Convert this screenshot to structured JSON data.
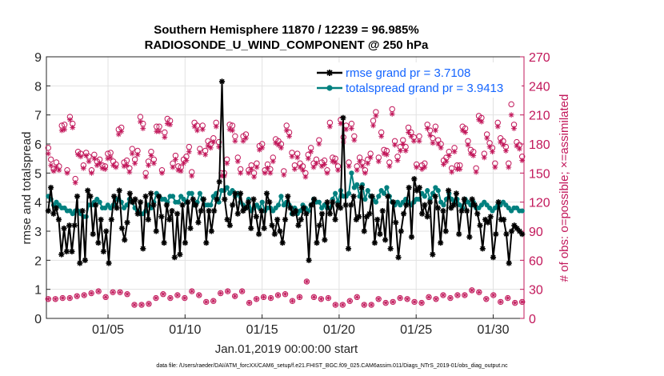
{
  "chart_data": {
    "type": "line",
    "title_line1": "Southern Hemisphere 11870 / 12239 = 96.985%",
    "title_line2": "RADIOSONDE_U_WIND_COMPONENT @ 250 hPa",
    "xlabel": "Jan.01,2019 00:00:00 start",
    "ylabel": "rmse and totalspread",
    "y2label": "# of obs: o=possible; ×=assimilated",
    "footer": "data file: /Users/raeder/DAI/ATM_forcXX/CAM6_setup/f.e21.FHIST_BGC.f09_025.CAM6assim.011/Diags_NTrS_2019-01/obs_diag_output.nc",
    "xlim": [
      1,
      32
    ],
    "ylim": [
      0,
      9
    ],
    "y2lim": [
      0,
      270
    ],
    "x_ticks": [
      5,
      10,
      15,
      20,
      25,
      30
    ],
    "x_tick_labels": [
      "01/05",
      "01/10",
      "01/15",
      "01/20",
      "01/25",
      "01/30"
    ],
    "y_ticks": [
      0,
      1,
      2,
      3,
      4,
      5,
      6,
      7,
      8,
      9
    ],
    "y_tick_labels": [
      "0",
      "1",
      "2",
      "3",
      "4",
      "5",
      "6",
      "7",
      "8",
      "9"
    ],
    "y2_ticks": [
      0,
      30,
      60,
      90,
      120,
      150,
      180,
      210,
      240,
      270
    ],
    "y2_tick_labels": [
      "0",
      "30",
      "60",
      "90",
      "120",
      "150",
      "180",
      "210",
      "240",
      "270"
    ],
    "grid": true,
    "legend_location": "top-right",
    "colors": {
      "rmse": "#000000",
      "spread": "#00807f",
      "obs": "#c2185b",
      "legend_text": "#1565ff"
    },
    "series": [
      {
        "name": "rmse grand pr = 3.7108",
        "marker": "asterisk",
        "values": [
          3.7,
          4.5,
          3.6,
          3.8,
          3.4,
          2.2,
          3.1,
          2.3,
          3.2,
          2.3,
          3.2,
          4.2,
          1.9,
          3.7,
          2.0,
          4.4,
          4.2,
          2.9,
          3.9,
          2.6,
          3.4,
          2.3,
          3.0,
          1.9,
          3.4,
          4.2,
          3.8,
          4.4,
          3.1,
          2.7,
          3.3,
          4.3,
          4.0,
          4.1,
          3.6,
          4.0,
          2.4,
          4.2,
          3.4,
          4.3,
          3.9,
          3.0,
          4.2,
          3.5,
          2.6,
          3.9,
          3.4,
          3.7,
          2.1,
          3.6,
          2.2,
          3.9,
          2.6,
          4.0,
          3.1,
          4.1,
          3.9,
          3.3,
          3.7,
          4.1,
          2.6,
          3.7,
          3.0,
          3.7,
          4.1,
          4.7,
          8.15,
          4.1,
          3.4,
          3.2,
          3.9,
          4.3,
          3.6,
          4.3,
          3.7,
          3.8,
          4.0,
          3.1,
          4.1,
          3.5,
          2.9,
          3.7,
          3.1,
          4.3,
          4.0,
          3.2,
          2.9,
          3.4,
          3.0,
          2.6,
          3.4,
          4.2,
          3.8,
          3.6,
          3.7,
          3.2,
          3.4,
          3.8,
          3.6,
          2.0,
          3.9,
          4.1,
          2.6,
          3.2,
          3.6,
          2.7,
          4.0,
          3.6,
          4.0,
          3.4,
          3.9,
          3.8,
          6.9,
          3.9,
          2.4,
          3.9,
          4.2,
          3.4,
          3.5,
          4.5,
          3.0,
          3.5,
          3.6,
          4.2,
          2.6,
          3.4,
          2.9,
          3.7,
          2.7,
          4.2,
          2.4,
          4.0,
          3.3,
          2.1,
          3.0,
          3.6,
          3.9,
          4.5,
          2.8,
          4.8,
          4.4,
          4.5,
          3.6,
          3.9,
          3.5,
          4.0,
          2.2,
          4.2,
          3.8,
          2.6,
          3.7,
          3.0,
          4.4,
          3.8,
          3.9,
          4.3,
          2.9,
          3.7,
          4.1,
          3.7,
          2.8,
          4.1,
          3.9,
          3.6,
          3.2,
          2.4,
          3.4,
          3.3,
          3.5,
          2.1,
          2.9,
          4.0,
          3.4,
          3.4,
          2.9,
          1.9,
          3.0,
          3.2,
          3.1,
          3.0,
          2.9
        ]
      },
      {
        "name": "totalspread grand pr = 3.9413",
        "marker": "dot",
        "values": [
          4.2,
          4.1,
          3.9,
          4.0,
          3.9,
          3.8,
          3.8,
          3.7,
          3.7,
          3.6,
          3.7,
          3.7,
          3.6,
          3.5,
          3.5,
          3.9,
          3.9,
          4.0,
          4.1,
          4.0,
          3.8,
          3.8,
          3.9,
          3.8,
          3.9,
          4.1,
          4.1,
          4.0,
          3.8,
          3.9,
          4.1,
          4.0,
          3.8,
          3.7,
          3.6,
          3.6,
          3.7,
          3.9,
          3.8,
          4.0,
          4.3,
          4.2,
          4.1,
          4.1,
          4.0,
          4.2,
          4.2,
          4.0,
          4.0,
          4.2,
          4.1,
          4.0,
          4.3,
          4.3,
          3.9,
          4.0,
          4.3,
          4.1,
          3.9,
          3.9,
          3.9,
          4.2,
          4.3,
          4.0,
          4.4,
          4.4,
          4.5,
          4.3,
          4.4,
          4.2,
          4.3,
          4.0,
          3.9,
          3.8,
          4.1,
          3.7,
          3.8,
          3.9,
          3.8,
          4.0,
          3.7,
          3.8,
          3.8,
          3.7,
          3.8,
          3.9,
          4.2,
          3.9,
          4.0,
          3.9,
          3.6,
          3.8,
          3.6,
          3.7,
          3.9,
          3.8,
          3.7,
          3.9,
          4.1,
          4.0,
          4.0,
          3.8,
          3.9,
          3.8,
          3.8,
          4.1,
          4.3,
          4.0,
          4.4,
          4.2,
          4.2,
          4.3,
          5.0,
          4.5,
          4.6,
          4.2,
          4.6,
          4.1,
          4.4,
          4.2,
          4.1,
          4.0,
          4.2,
          4.4,
          4.3,
          4.5,
          4.2,
          4.0,
          3.9,
          4.0,
          3.9,
          4.0,
          4.1,
          4.0,
          3.9,
          4.0,
          4.1,
          4.1,
          4.3,
          4.2,
          4.4,
          4.1,
          4.3,
          4.5,
          4.4,
          4.0,
          3.9,
          4.1,
          4.3,
          4.1,
          4.0,
          4.1,
          3.9,
          3.8,
          4.1,
          4.0,
          3.9,
          4.0,
          3.8,
          3.8,
          3.9,
          4.0,
          3.9,
          3.8,
          3.7,
          3.8,
          3.9,
          3.9,
          4.0,
          3.9,
          3.8,
          3.7,
          3.8,
          3.8,
          3.7,
          3.7
        ]
      },
      {
        "name": "obs possible",
        "axis": "right",
        "marker": "circle",
        "values": [
          176,
          164,
          154,
          161,
          157,
          199,
          200,
          153,
          208,
          201,
          144,
          172,
          170,
          158,
          171,
          167,
          153,
          169,
          162,
          164,
          158,
          157,
          170,
          171,
          162,
          159,
          195,
          197,
          161,
          163,
          155,
          175,
          164,
          173,
          208,
          201,
          150,
          162,
          172,
          164,
          198,
          198,
          153,
          192,
          206,
          204,
          160,
          168,
          157,
          156,
          164,
          167,
          177,
          151,
          202,
          199,
          175,
          199,
          173,
          183,
          180,
          186,
          202,
          182,
          150,
          150,
          164,
          200,
          199,
          188,
          166,
          154,
          188,
          190,
          153,
          158,
          150,
          160,
          178,
          180,
          153,
          159,
          154,
          166,
          185,
          183,
          180,
          152,
          199,
          192,
          171,
          158,
          170,
          160,
          157,
          150,
          169,
          176,
          160,
          164,
          184,
          161,
          163,
          153,
          202,
          166,
          165,
          157,
          205,
          187,
          199,
          161,
          201,
          188,
          157,
          166,
          161,
          153,
          164,
          170,
          204,
          213,
          166,
          192,
          174,
          173,
          161,
          216,
          183,
          167,
          177,
          184,
          177,
          197,
          192,
          187,
          159,
          188,
          158,
          160,
          200,
          194,
          186,
          198,
          184,
          180,
          163,
          166,
          172,
          155,
          176,
          158,
          158,
          198,
          196,
          183,
          174,
          172,
          155,
          209,
          207,
          170,
          190,
          181,
          176,
          160,
          202,
          186,
          183,
          177,
          160,
          221,
          200,
          182,
          179,
          167
        ]
      },
      {
        "name": "obs assimilated",
        "axis": "right",
        "marker": "asterisk",
        "values": [
          170,
          158,
          152,
          156,
          153,
          194,
          195,
          150,
          205,
          197,
          140,
          169,
          167,
          155,
          168,
          162,
          150,
          165,
          158,
          160,
          155,
          154,
          165,
          166,
          158,
          156,
          190,
          193,
          157,
          158,
          151,
          170,
          160,
          169,
          203,
          196,
          146,
          158,
          168,
          160,
          193,
          193,
          150,
          187,
          201,
          200,
          156,
          164,
          153,
          152,
          160,
          163,
          172,
          147,
          198,
          194,
          171,
          195,
          169,
          178,
          176,
          182,
          198,
          177,
          147,
          147,
          160,
          195,
          194,
          183,
          162,
          150,
          183,
          186,
          150,
          154,
          146,
          156,
          174,
          176,
          150,
          155,
          150,
          162,
          181,
          179,
          176,
          148,
          194,
          188,
          167,
          154,
          166,
          156,
          153,
          146,
          165,
          172,
          156,
          160,
          180,
          157,
          159,
          150,
          198,
          162,
          161,
          153,
          201,
          182,
          195,
          157,
          196,
          184,
          153,
          162,
          157,
          150,
          160,
          166,
          199,
          209,
          162,
          188,
          170,
          169,
          157,
          211,
          179,
          163,
          173,
          180,
          173,
          192,
          188,
          183,
          156,
          183,
          154,
          156,
          196,
          189,
          181,
          194,
          180,
          176,
          159,
          162,
          168,
          151,
          172,
          154,
          154,
          194,
          192,
          179,
          170,
          168,
          151,
          205,
          203,
          166,
          186,
          177,
          172,
          156,
          198,
          182,
          179,
          173,
          156,
          210,
          196,
          178,
          175,
          163
        ]
      },
      {
        "name": "obs low possible",
        "axis": "right",
        "marker": "circle",
        "values": [
          20,
          20,
          21,
          21,
          23,
          24,
          26,
          28,
          22,
          27,
          27,
          25,
          14,
          14,
          15,
          21,
          25,
          21,
          24,
          21,
          28,
          24,
          17,
          18,
          26,
          28,
          23,
          28,
          16,
          20,
          22,
          21,
          24,
          25,
          18,
          22,
          38,
          22,
          20,
          21,
          14,
          14,
          18,
          22,
          14,
          14,
          20,
          16,
          17,
          21,
          20,
          17,
          16,
          22,
          20,
          24,
          21,
          24,
          24,
          29,
          27,
          20,
          24,
          17,
          21,
          16,
          17
        ]
      }
    ]
  }
}
